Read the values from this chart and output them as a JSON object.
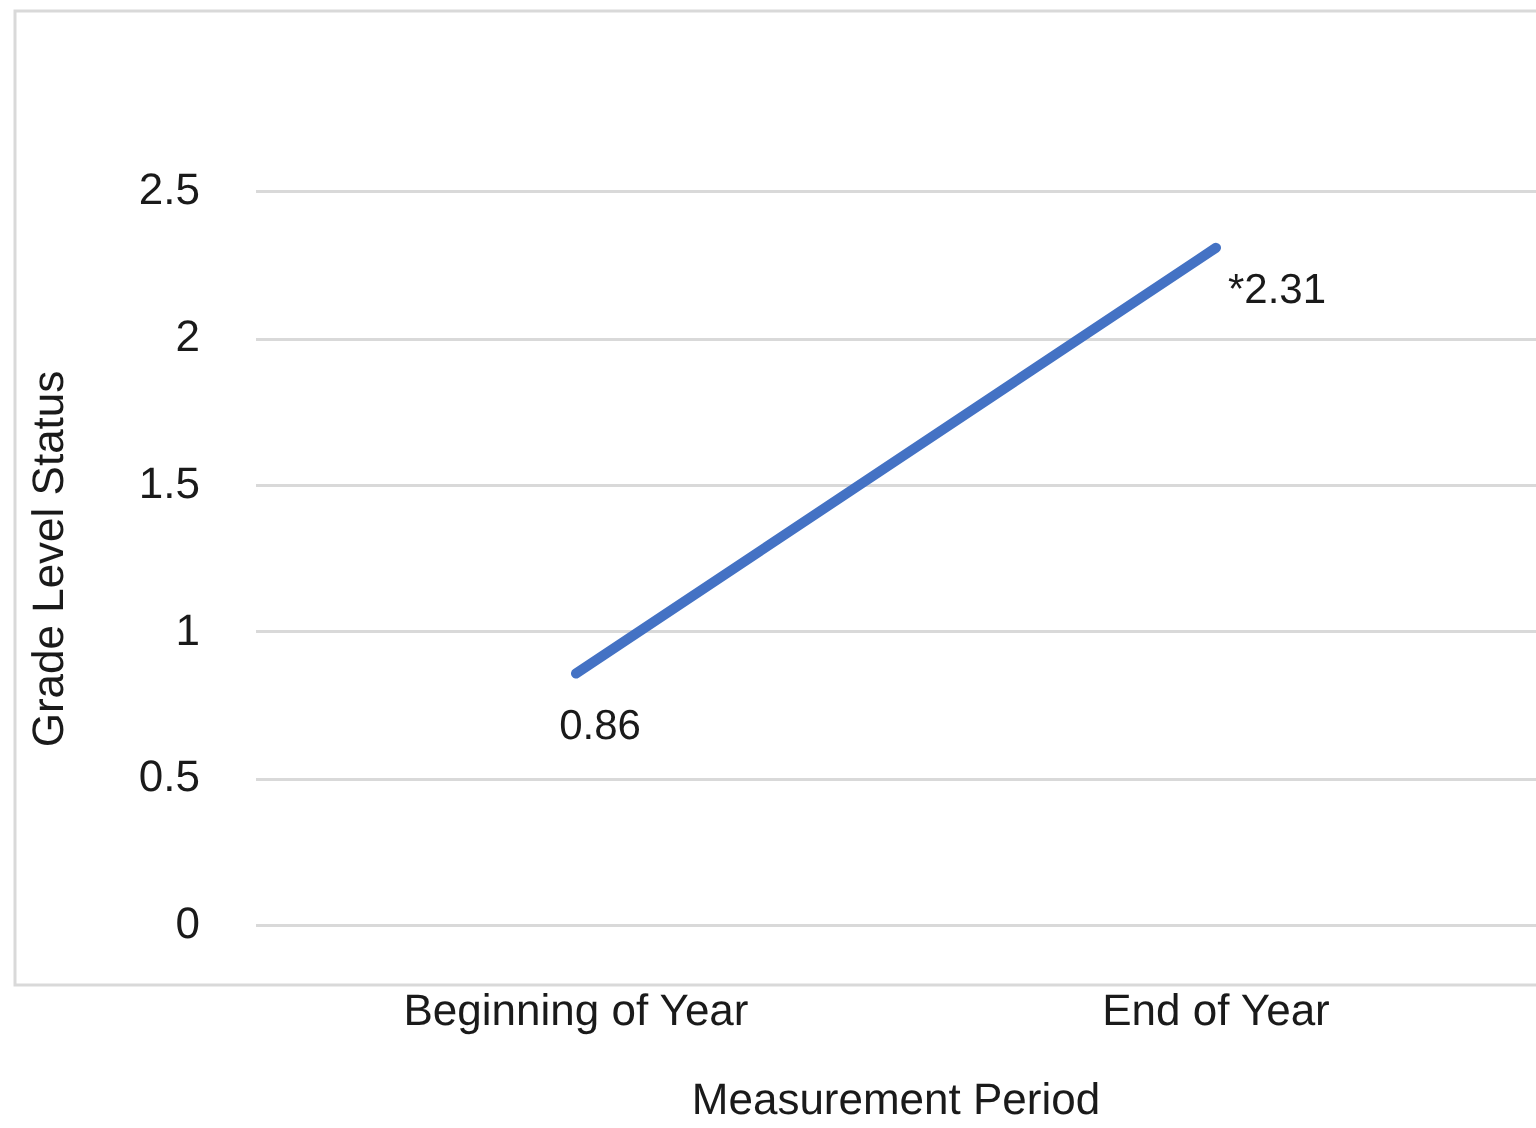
{
  "chart_data": {
    "type": "line",
    "xlabel": "Measurement Period",
    "ylabel": "Grade Level Status",
    "categories": [
      "Beginning of Year",
      "End of Year"
    ],
    "values": [
      0.86,
      2.31
    ],
    "color": "#4472c4",
    "value_labels": [
      "0.86",
      "*2.31"
    ],
    "ylim": [
      0,
      2.5
    ],
    "yticks": [
      0,
      0.5,
      1,
      1.5,
      2,
      2.5
    ],
    "grid": "y",
    "legend": false,
    "marker": "none",
    "line_style": "solid"
  }
}
